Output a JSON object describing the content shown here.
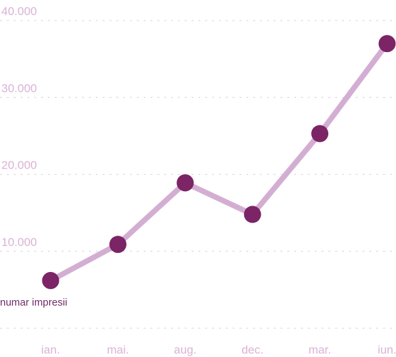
{
  "chart_data": {
    "type": "line",
    "title": "",
    "xlabel": "",
    "ylabel": "numar impresii",
    "categories": [
      "ian.",
      "mai.",
      "aug.",
      "dec.",
      "mar.",
      "iun."
    ],
    "series": [
      {
        "values": [
          6200,
          10900,
          18900,
          14800,
          25300,
          37000
        ]
      }
    ],
    "y_ticks": [
      {
        "value": 10000,
        "label": "10.000"
      },
      {
        "value": 20000,
        "label": "20.000"
      },
      {
        "value": 30000,
        "label": "30.000"
      },
      {
        "value": 40000,
        "label": "40.000"
      }
    ],
    "ylim": [
      0,
      40000
    ],
    "grid": true,
    "colors": {
      "line": "#d3aed2",
      "marker": "#7b2466",
      "grid": "#e3d7e3",
      "tick": "#d9b3d6",
      "ylabel": "#6e2a66"
    }
  }
}
